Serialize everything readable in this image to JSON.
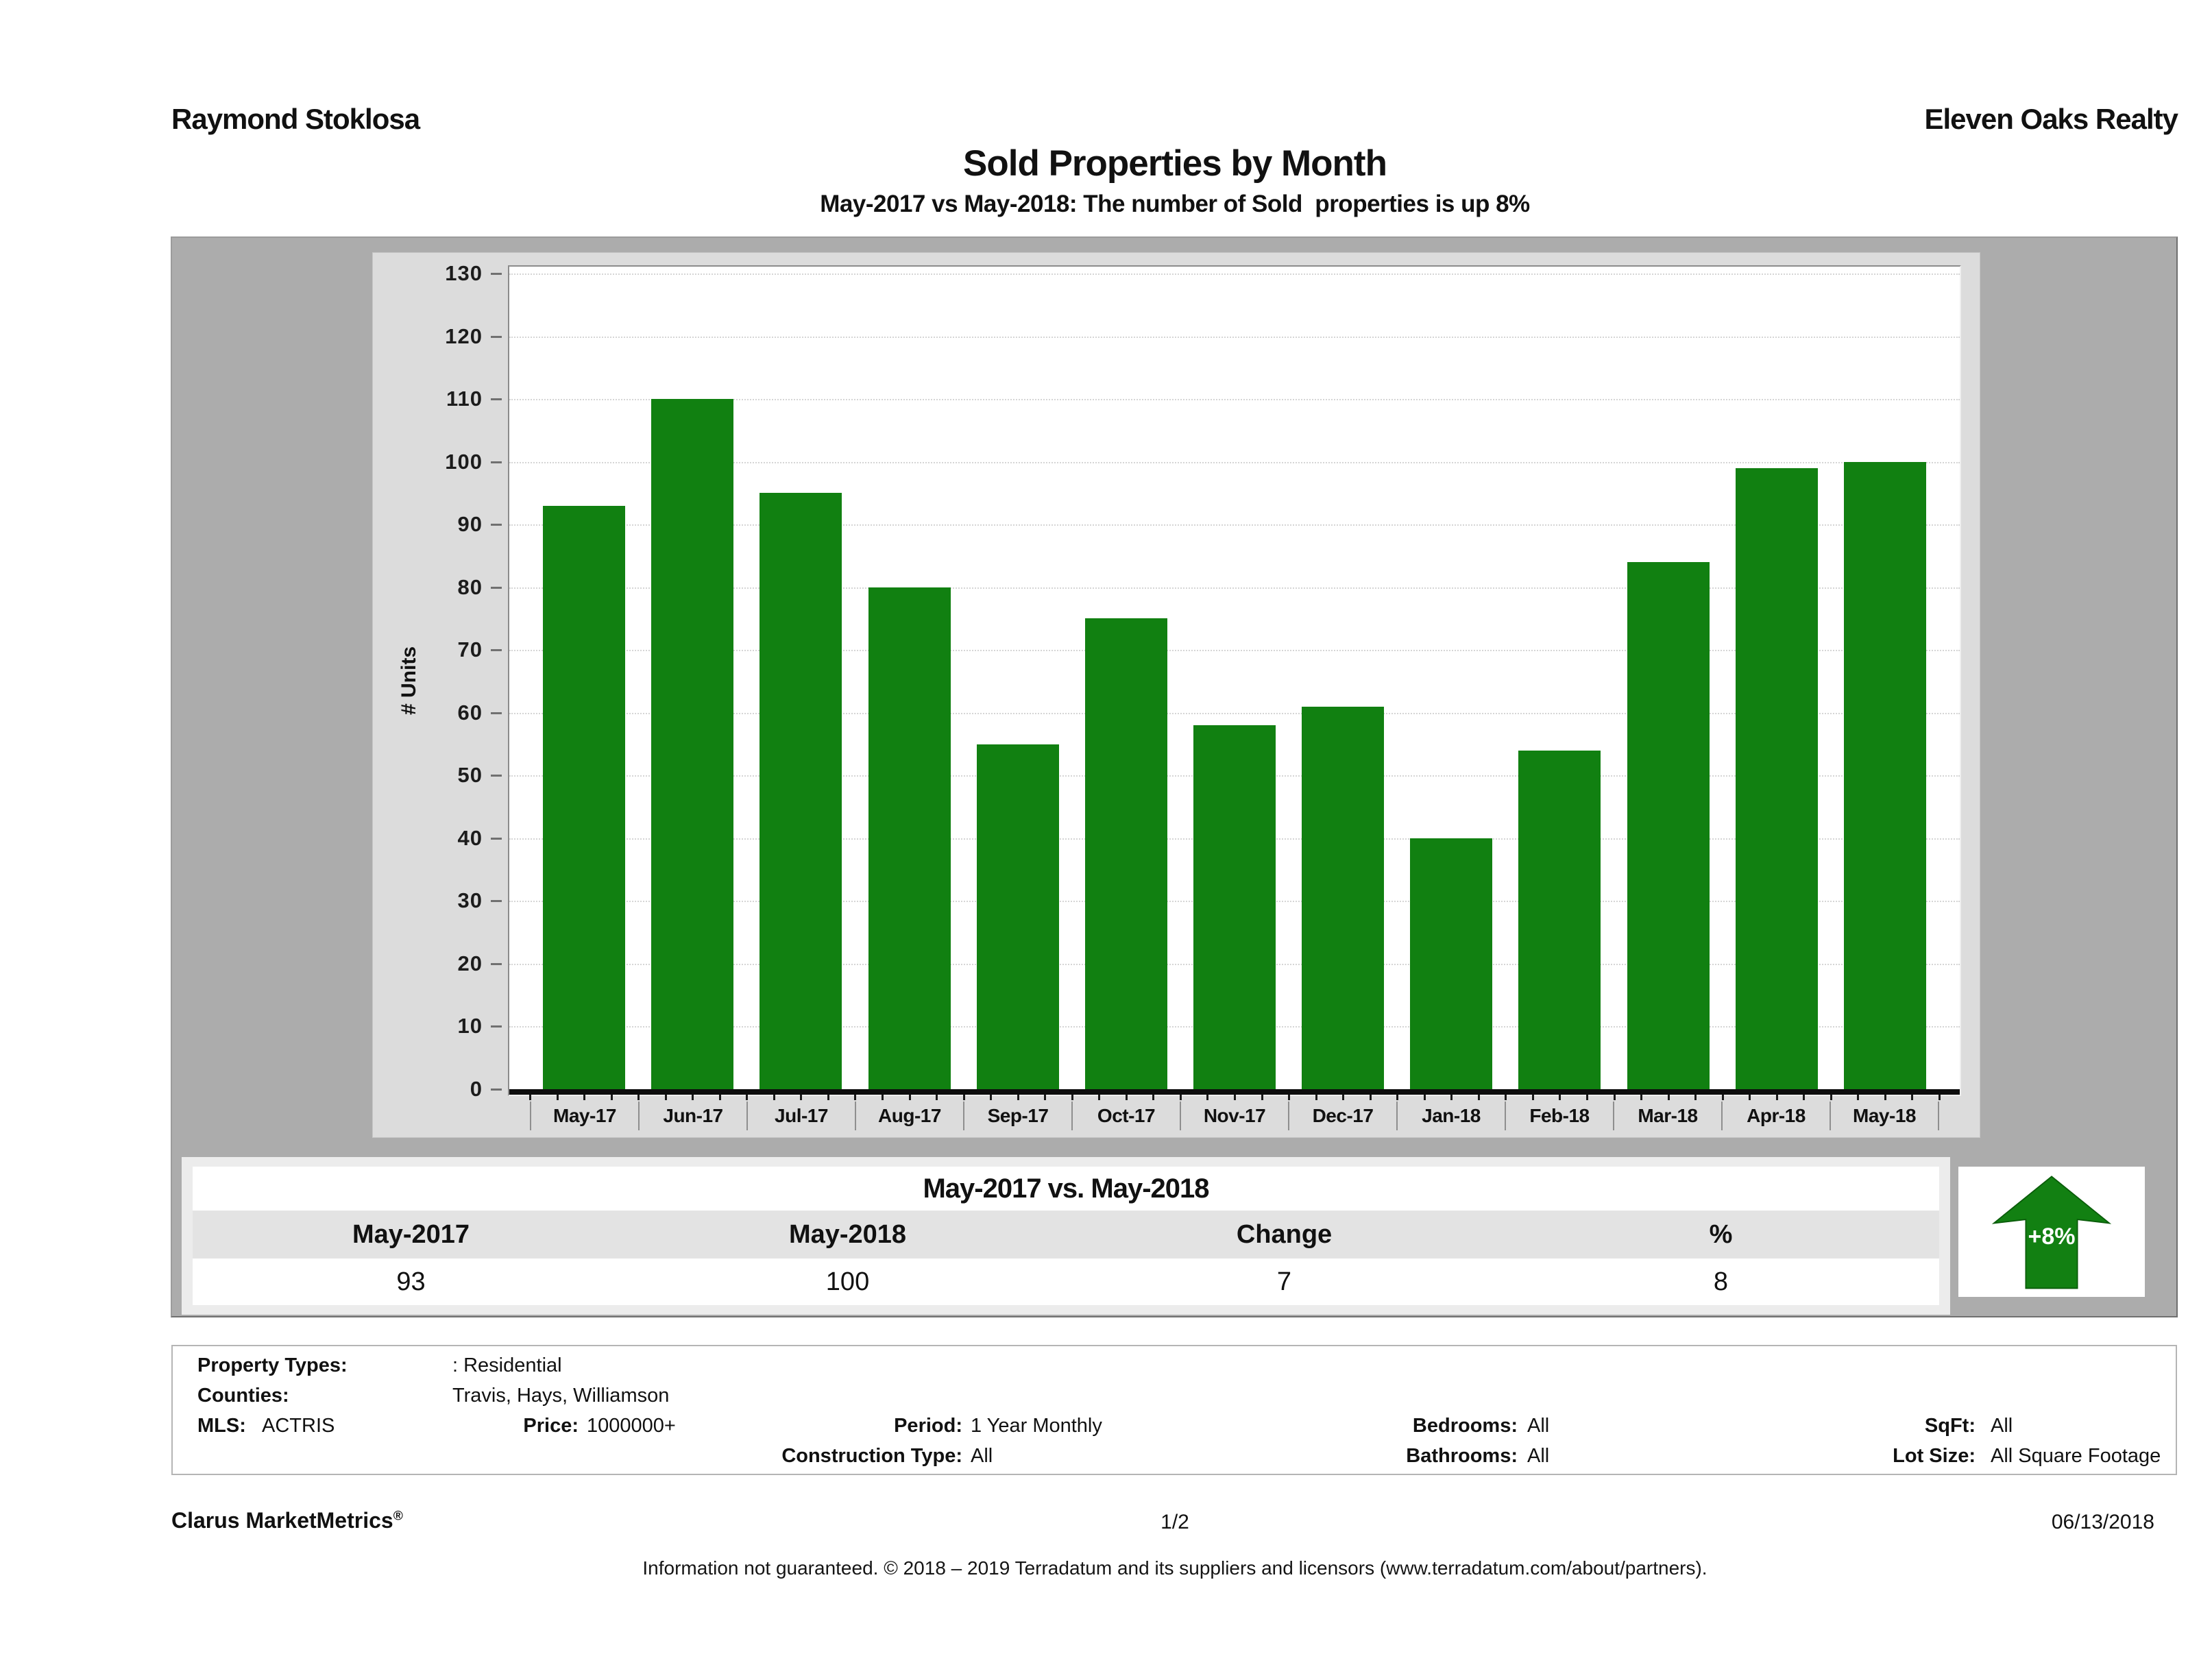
{
  "header": {
    "agent": "Raymond Stoklosa",
    "company": "Eleven Oaks Realty",
    "title": "Sold Properties by Month",
    "subtitle": "May-2017 vs May-2018: The number of Sold  properties is up 8%"
  },
  "chart_data": {
    "type": "bar",
    "title": "Sold Properties by Month",
    "categories": [
      "May-17",
      "Jun-17",
      "Jul-17",
      "Aug-17",
      "Sep-17",
      "Oct-17",
      "Nov-17",
      "Dec-17",
      "Jan-18",
      "Feb-18",
      "Mar-18",
      "Apr-18",
      "May-18"
    ],
    "values": [
      93,
      110,
      95,
      80,
      55,
      75,
      58,
      61,
      40,
      54,
      84,
      99,
      100
    ],
    "xlabel": "",
    "ylabel": "# Units",
    "ylim": [
      0,
      130
    ],
    "ytick_step": 10,
    "grid": true,
    "legend_position": "none",
    "bar_color": "#118011"
  },
  "summary": {
    "title": "May-2017 vs. May-2018",
    "columns": [
      "May-2017",
      "May-2018",
      "Change",
      "%"
    ],
    "values": [
      "93",
      "100",
      "7",
      "8"
    ],
    "badge": "+8%"
  },
  "colors": {
    "bar": "#118011",
    "arrow": "#128012",
    "panel": "#ACACAC",
    "panel_inner": "#DCDCDC",
    "table_bg": "#ECECEC",
    "header_row": "#E3E3E3"
  },
  "filters": {
    "property_types_label": "Property Types:",
    "property_types": ": Residential",
    "counties_label": "Counties:",
    "counties": "Travis, Hays, Williamson",
    "mls_label": "MLS:",
    "mls": "ACTRIS",
    "price_label": "Price:",
    "price": "1000000+",
    "period_label": "Period:",
    "period": "1 Year Monthly",
    "construction_label": "Construction Type:",
    "construction": "All",
    "bedrooms_label": "Bedrooms:",
    "bedrooms": "All",
    "bathrooms_label": "Bathrooms:",
    "bathrooms": "All",
    "sqft_label": "SqFt:",
    "sqft": "All",
    "lot_label": "Lot Size:",
    "lot": "All Square Footage"
  },
  "footer": {
    "brand": "Clarus MarketMetrics",
    "brand_reg": "®",
    "page": "1/2",
    "date": "06/13/2018",
    "disclaimer": "Information not guaranteed. © 2018 – 2019 Terradatum and its suppliers and licensors (www.terradatum.com/about/partners)."
  }
}
